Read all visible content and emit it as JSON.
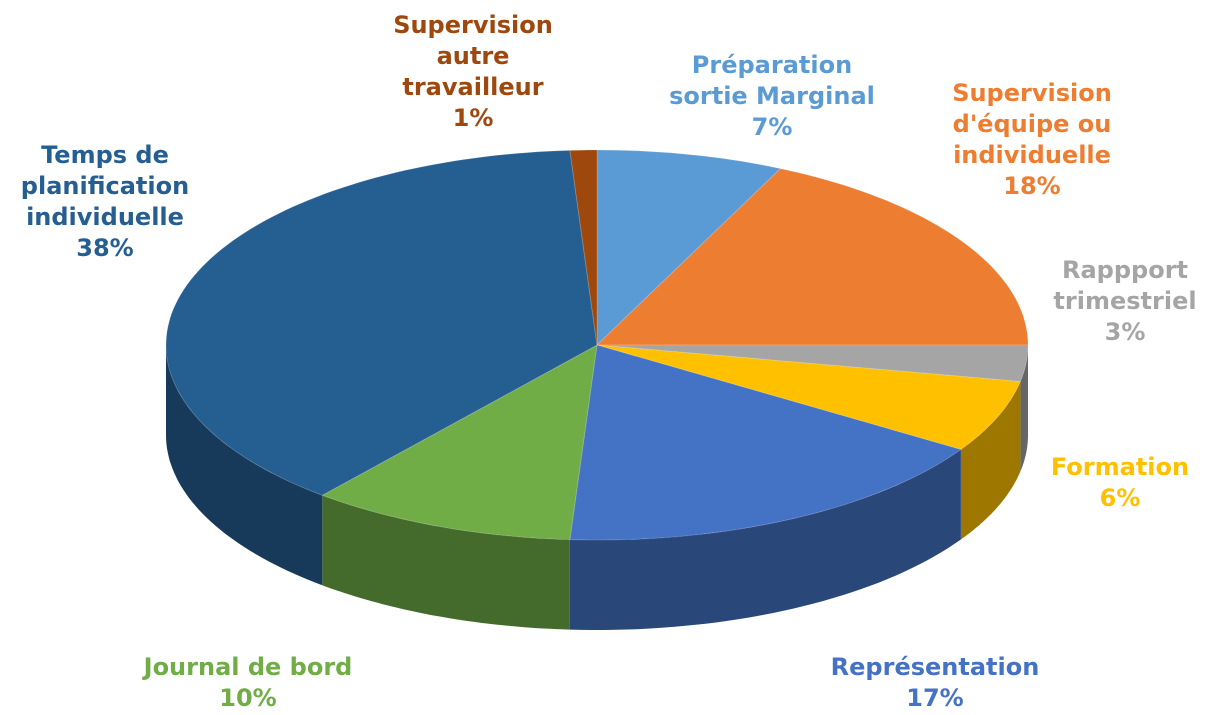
{
  "chart_data": {
    "type": "pie3d",
    "categories": [
      "Préparation sortie Marginal",
      "Supervision d'équipe ou individuelle",
      "Rappport trimestriel",
      "Formation",
      "Représentation",
      "Journal de bord",
      "Temps de planification individuelle",
      "Supervision autre travailleur"
    ],
    "values": [
      7,
      18,
      3,
      6,
      17,
      10,
      38,
      1
    ],
    "value_labels": [
      "7%",
      "18%",
      "3%",
      "6%",
      "17%",
      "10%",
      "38%",
      "1%"
    ],
    "colors": [
      "#5b9bd5",
      "#ed7d31",
      "#a5a5a5",
      "#ffc000",
      "#4472c4",
      "#70ad47",
      "#255e91",
      "#9e480e"
    ]
  }
}
